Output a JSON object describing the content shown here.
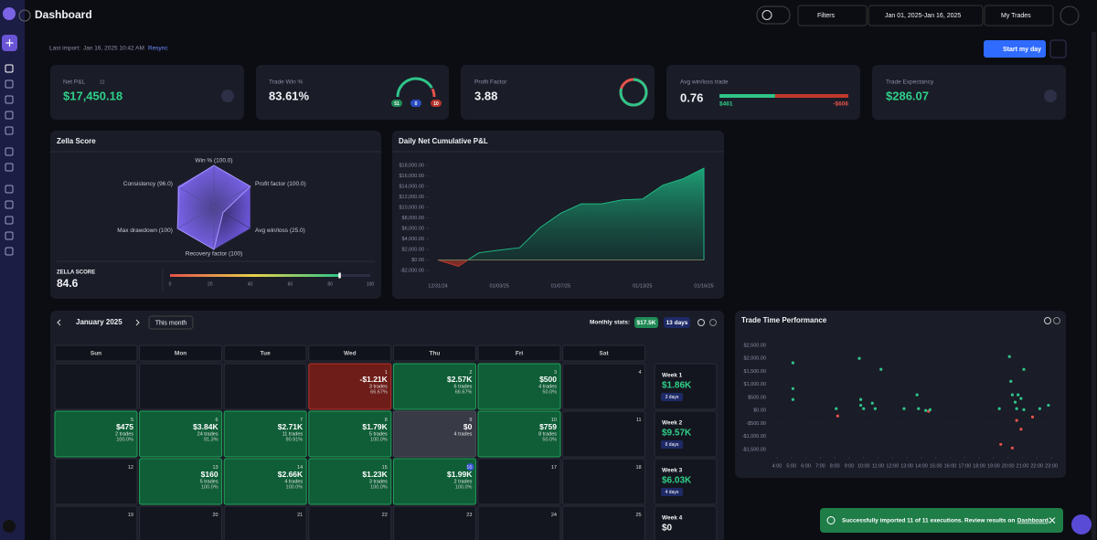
{
  "header": {
    "title": "Dashboard",
    "filters": "Filters",
    "date_range": "Jan 01, 2025-Jan 16, 2025",
    "account": "My Trades"
  },
  "import_bar": {
    "label": "Last import:",
    "time": "Jan 16, 2025 10:42 AM",
    "action": "Resync",
    "button": "Start my day"
  },
  "stats": {
    "net_pnl": {
      "label": "Net P&L",
      "badge": "12",
      "value": "$17,450.18"
    },
    "win_rate": {
      "label": "Trade Win %",
      "value": "83.61%",
      "wins": 51,
      "breakeven": 0,
      "losses": 10
    },
    "profit_factor": {
      "label": "Profit Factor",
      "value": 3.88
    },
    "avg_win_loss": {
      "label": "Avg win/loss trade",
      "value": 0.76,
      "avg_win": "$461",
      "avg_loss": "-$606"
    },
    "expectancy": {
      "label": "Trade Expectancy",
      "value": "$286.07"
    }
  },
  "zella": {
    "title": "Zella Score",
    "axes": [
      {
        "label": "Win % (100.0)",
        "value": 100
      },
      {
        "label": "Profit factor (100.0)",
        "value": 100
      },
      {
        "label": "Avg win/loss (25.0)",
        "value": 25
      },
      {
        "label": "Recovery factor (100)",
        "value": 100
      },
      {
        "label": "Max drawdown (100)",
        "value": 100
      },
      {
        "label": "Consistency (96.0)",
        "value": 96
      }
    ],
    "score_label": "ZELLA SCORE",
    "score": 84.6,
    "scale_ticks": [
      0,
      20,
      40,
      60,
      80,
      100
    ]
  },
  "cumulative": {
    "type": "area",
    "title": "Daily Net Cumulative P&L",
    "categories": [
      "12/31/24",
      null,
      null,
      "01/03/25",
      null,
      null,
      "01/07/25",
      null,
      null,
      null,
      "01/13/25",
      null,
      null,
      "01/16/25"
    ],
    "values": [
      0,
      -1210,
      1360,
      1860,
      2335,
      6175,
      8885,
      10675,
      10675,
      11434,
      11594,
      14254,
      15484,
      17474
    ],
    "ylim": [
      -2000,
      18000
    ],
    "yticks": [
      {
        "value": 18000,
        "label": "$18,000.00"
      },
      {
        "value": 16000,
        "label": "$16,000.00"
      },
      {
        "value": 14000,
        "label": "$14,000.00"
      },
      {
        "value": 12000,
        "label": "$12,000.00"
      },
      {
        "value": 10000,
        "label": "$10,000.00"
      },
      {
        "value": 8000,
        "label": "$8,000.00"
      },
      {
        "value": 6000,
        "label": "$6,000.00"
      },
      {
        "value": 4000,
        "label": "$4,000.00"
      },
      {
        "value": 2000,
        "label": "$2,000.00"
      },
      {
        "value": 0,
        "label": "$0.00"
      },
      {
        "value": -2000,
        "label": "-$2,000.00"
      }
    ],
    "color": "#1fb783",
    "negative_color": "#c0392b"
  },
  "calendar": {
    "month": "January 2025",
    "this_month": "This month",
    "stats_label": "Monthly stats:",
    "stats_pnl": "$17.5K",
    "stats_days": "13 days",
    "weekdays": [
      "Sun",
      "Mon",
      "Tue",
      "Wed",
      "Thu",
      "Fri",
      "Sat"
    ],
    "today": 16,
    "rows": [
      [
        null,
        null,
        null,
        {
          "day": 1,
          "pnl": "-$1.21K",
          "trades": "3 trades",
          "winrate": "66.67%"
        },
        {
          "day": 2,
          "pnl": "$2.57K",
          "trades": "6 trades",
          "winrate": "66.67%"
        },
        {
          "day": 3,
          "pnl": "$500",
          "trades": "4 trades",
          "winrate": "50.0%"
        },
        {
          "day": 4
        }
      ],
      [
        {
          "day": 5,
          "pnl": "$475",
          "trades": "2 trades",
          "winrate": "100.0%"
        },
        {
          "day": 6,
          "pnl": "$3.84K",
          "trades": "24 trades",
          "winrate": "91.3%"
        },
        {
          "day": 7,
          "pnl": "$2.71K",
          "trades": "11 trades",
          "winrate": "90.91%"
        },
        {
          "day": 8,
          "pnl": "$1.79K",
          "trades": "5 trades",
          "winrate": "100.0%"
        },
        {
          "day": 9,
          "pnl": "$0",
          "trades": "4 trades"
        },
        {
          "day": 10,
          "pnl": "$759",
          "trades": "8 trades",
          "winrate": "50.0%"
        },
        {
          "day": 11
        }
      ],
      [
        {
          "day": 12
        },
        {
          "day": 13,
          "pnl": "$160",
          "trades": "5 trades",
          "winrate": "100.0%"
        },
        {
          "day": 14,
          "pnl": "$2.66K",
          "trades": "4 trades",
          "winrate": "100.0%"
        },
        {
          "day": 15,
          "pnl": "$1.23K",
          "trades": "3 trades",
          "winrate": "100.0%"
        },
        {
          "day": 16,
          "pnl": "$1.99K",
          "trades": "2 trades",
          "winrate": "100.0%"
        },
        {
          "day": 17
        },
        {
          "day": 18
        }
      ],
      [
        {
          "day": 19
        },
        {
          "day": 20
        },
        {
          "day": 21
        },
        {
          "day": 22
        },
        {
          "day": 23
        },
        {
          "day": 24
        },
        {
          "day": 25
        }
      ]
    ],
    "week_summaries": [
      {
        "label": "Week 1",
        "pnl": "$1.86K",
        "days": "3 days"
      },
      {
        "label": "Week 2",
        "pnl": "$9.57K",
        "days": "6 days"
      },
      {
        "label": "Week 3",
        "pnl": "$6.03K",
        "days": "4 days"
      },
      {
        "label": "Week 4",
        "pnl": "$0"
      }
    ]
  },
  "time_performance": {
    "type": "scatter",
    "title": "Trade Time Performance",
    "x": [
      5.1,
      5.1,
      5.1,
      8.1,
      8.2,
      9.7,
      9.8,
      9.8,
      10.0,
      10.6,
      10.8,
      11.2,
      12.8,
      13.7,
      13.8,
      14.3,
      14.5,
      14.6,
      19.4,
      19.5,
      20.1,
      20.2,
      20.3,
      20.3,
      20.5,
      20.6,
      20.6,
      20.7,
      20.9,
      20.9,
      21.1,
      21.1,
      21.7,
      22.2,
      22.8
    ],
    "values": [
      1830,
      840,
      420,
      70,
      -210,
      2000,
      420,
      200,
      70,
      280,
      70,
      1580,
      70,
      600,
      70,
      0,
      -30,
      30,
      70,
      -1300,
      2070,
      1120,
      600,
      -1440,
      320,
      70,
      -380,
      600,
      460,
      -720,
      1580,
      30,
      -250,
      70,
      200
    ],
    "xlim": [
      4,
      23
    ],
    "xticks": [
      {
        "value": 4,
        "label": "4:00"
      },
      {
        "value": 5,
        "label": "5:00"
      },
      {
        "value": 6,
        "label": "6:00"
      },
      {
        "value": 7,
        "label": "7:00"
      },
      {
        "value": 8,
        "label": "8:00"
      },
      {
        "value": 9,
        "label": "9:00"
      },
      {
        "value": 10,
        "label": "10:00"
      },
      {
        "value": 11,
        "label": "11:00"
      },
      {
        "value": 12,
        "label": "12:00"
      },
      {
        "value": 13,
        "label": "13:00"
      },
      {
        "value": 14,
        "label": "14:00"
      },
      {
        "value": 15,
        "label": "15:00"
      },
      {
        "value": 16,
        "label": "16:00"
      },
      {
        "value": 17,
        "label": "17:00"
      },
      {
        "value": 18,
        "label": "18:00"
      },
      {
        "value": 19,
        "label": "19:00"
      },
      {
        "value": 20,
        "label": "20:00"
      },
      {
        "value": 21,
        "label": "21:00"
      },
      {
        "value": 22,
        "label": "22:00"
      },
      {
        "value": 23,
        "label": "23:00"
      }
    ],
    "ylim": [
      -1500,
      2500
    ],
    "yticks": [
      {
        "value": 2500,
        "label": "$2,500.00"
      },
      {
        "value": 2000,
        "label": "$2,000.00"
      },
      {
        "value": 1500,
        "label": "$1,500.00"
      },
      {
        "value": 1000,
        "label": "$1,000.00"
      },
      {
        "value": 500,
        "label": "$500.00"
      },
      {
        "value": 0,
        "label": "$0.00"
      },
      {
        "value": -500,
        "label": "-$500.00"
      },
      {
        "value": -1000,
        "label": "-$1,000.00"
      },
      {
        "value": -1500,
        "label": "-$1,500.00"
      }
    ],
    "positive_color": "#2fc489",
    "negative_color": "#e5534b"
  },
  "toast": {
    "message": "Successfully imported 11 of 11 executions. Review results on",
    "link": "Dashboard",
    "end": "."
  }
}
